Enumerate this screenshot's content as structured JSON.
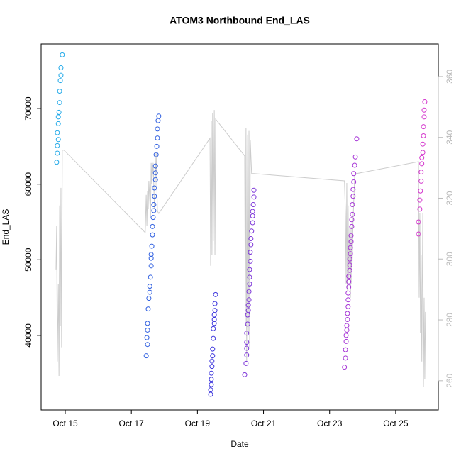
{
  "chart_data": {
    "type": "scatter",
    "title": "ATOM3 Northbound End_LAS",
    "xlabel": "Date",
    "ylabel": "End_LAS",
    "xlim": [
      14.27,
      26.29
    ],
    "xticks": [
      {
        "value": 15,
        "label": "Oct 15"
      },
      {
        "value": 17,
        "label": "Oct 17"
      },
      {
        "value": 19,
        "label": "Oct 19"
      },
      {
        "value": 21,
        "label": "Oct 21"
      },
      {
        "value": 23,
        "label": "Oct 23"
      },
      {
        "value": 25,
        "label": "Oct 25"
      }
    ],
    "ylim": [
      30141,
      78545
    ],
    "yticks": [
      40000,
      50000,
      60000,
      70000
    ],
    "y2lim": [
      250.4,
      370.7
    ],
    "y2ticks": [
      260,
      280,
      300,
      320,
      340,
      360
    ],
    "series": [
      {
        "type": "line",
        "axis": "y2",
        "color": "#cccccc",
        "x": [
          14.72,
          14.74,
          14.76,
          14.79,
          14.81,
          14.83,
          14.85,
          14.87,
          14.89,
          14.91,
          14.96,
          17.42,
          17.45,
          17.47,
          17.49,
          17.51,
          17.53,
          17.58,
          17.6,
          17.62,
          17.64,
          17.66,
          17.7,
          17.75,
          17.79,
          17.83,
          19.38,
          19.4,
          19.42,
          19.44,
          19.46,
          19.48,
          19.51,
          19.53,
          19.55,
          20.43,
          20.45,
          20.47,
          20.49,
          20.52,
          20.54,
          20.56,
          20.58,
          20.6,
          20.64,
          20.71,
          23.45,
          23.48,
          23.5,
          23.52,
          23.54,
          23.56,
          23.58,
          23.61,
          23.63,
          23.65,
          23.67,
          23.71,
          23.76,
          23.82,
          25.69,
          25.71,
          25.73,
          25.75,
          25.77,
          25.79,
          25.82,
          25.84,
          25.86,
          25.88,
          25.9,
          25.9
        ],
        "values": [
          296.6,
          311.0,
          266.3,
          291.9,
          261.6,
          317.6,
          277.9,
          323.4,
          271.0,
          335.8,
          335.8,
          308.7,
          321.1,
          311.0,
          322.2,
          316.4,
          325.7,
          314.1,
          331.6,
          324.6,
          328.1,
          331.6,
          316.4,
          335.1,
          315.7,
          315.0,
          339.7,
          297.8,
          345.5,
          301.3,
          347.9,
          305.9,
          349.0,
          301.3,
          346.0,
          333.9,
          277.9,
          343.2,
          266.3,
          340.9,
          275.6,
          342.1,
          271.0,
          339.0,
          328.1,
          328.1,
          325.7,
          314.1,
          291.9,
          325.0,
          289.6,
          317.6,
          293.1,
          310.6,
          287.3,
          310.6,
          291.9,
          312.9,
          327.4,
          328.1,
          332.0,
          287.3,
          315.2,
          275.6,
          301.3,
          266.3,
          315.2,
          258.1,
          287.3,
          260.5,
          282.6,
          273.3
        ]
      },
      {
        "color": "#1fa8e8",
        "x": [
          14.74,
          14.76,
          14.76,
          14.79,
          14.76,
          14.79,
          14.79,
          14.81,
          14.83,
          14.83,
          14.85,
          14.87,
          14.87,
          14.91
        ],
        "values": [
          62900,
          64100,
          65100,
          65900,
          66800,
          68000,
          68900,
          69500,
          70800,
          72300,
          73700,
          74400,
          75400,
          77100
        ]
      },
      {
        "color": "#2f5fe0",
        "x": [
          17.45,
          17.49,
          17.47,
          17.49,
          17.49,
          17.51,
          17.53,
          17.56,
          17.56,
          17.58,
          17.6,
          17.6,
          17.6,
          17.62,
          17.64,
          17.64,
          17.66,
          17.68,
          17.68,
          17.7,
          17.7,
          17.73,
          17.73,
          17.73,
          17.75,
          17.77,
          17.79,
          17.79,
          17.81,
          17.83
        ],
        "values": [
          37300,
          38800,
          39700,
          40700,
          41600,
          43500,
          44900,
          45700,
          46500,
          47700,
          49200,
          50200,
          50700,
          51800,
          53300,
          54400,
          55600,
          56500,
          57300,
          58400,
          59500,
          60600,
          61500,
          62400,
          63900,
          65000,
          66100,
          67300,
          68400,
          69000
        ]
      },
      {
        "color": "#3a33dc",
        "x": [
          19.4,
          19.4,
          19.42,
          19.42,
          19.42,
          19.44,
          19.44,
          19.46,
          19.46,
          19.48,
          19.48,
          19.51,
          19.51,
          19.51,
          19.53,
          19.53,
          19.55
        ],
        "values": [
          32200,
          32800,
          33500,
          34200,
          35000,
          35900,
          36600,
          37300,
          38200,
          39600,
          40900,
          41600,
          42100,
          42700,
          43300,
          44200,
          45400
        ]
      },
      {
        "color": "#7b33d8",
        "x": [
          20.43,
          20.47,
          20.49,
          20.49,
          20.49,
          20.49,
          20.52,
          20.52,
          20.54,
          20.54,
          20.56,
          20.56,
          20.58,
          20.58,
          20.58,
          20.6,
          20.6,
          20.62,
          20.62,
          20.64,
          20.67,
          20.67,
          20.67,
          20.69,
          20.71,
          20.71
        ],
        "values": [
          34800,
          36300,
          37400,
          38300,
          39100,
          40300,
          41500,
          42700,
          43300,
          44000,
          44700,
          45800,
          46800,
          47700,
          48700,
          49800,
          51000,
          52000,
          52800,
          53800,
          54900,
          55800,
          56400,
          57300,
          58300,
          59200
        ]
      },
      {
        "color": "#a533d6",
        "x": [
          23.45,
          23.48,
          23.48,
          23.5,
          23.5,
          23.52,
          23.52,
          23.54,
          23.54,
          23.56,
          23.56,
          23.56,
          23.58,
          23.58,
          23.58,
          23.61,
          23.61,
          23.61,
          23.63,
          23.63,
          23.65,
          23.65,
          23.67,
          23.67,
          23.69,
          23.69,
          23.71,
          23.71,
          23.73,
          23.73,
          23.76,
          23.78,
          23.82
        ],
        "values": [
          35800,
          37000,
          38100,
          39200,
          40000,
          40700,
          41300,
          42100,
          42900,
          43800,
          44700,
          45600,
          46400,
          47100,
          47800,
          48600,
          49300,
          50100,
          50800,
          51600,
          52400,
          53200,
          54400,
          55300,
          56000,
          57300,
          58400,
          59300,
          60300,
          61400,
          62500,
          63600,
          66000
        ]
      },
      {
        "color": "#d333cc",
        "x": [
          25.69,
          25.69,
          25.73,
          25.73,
          25.75,
          25.77,
          25.77,
          25.79,
          25.79,
          25.82,
          25.82,
          25.84,
          25.84,
          25.86,
          25.86,
          25.88
        ],
        "values": [
          53400,
          55000,
          56700,
          57900,
          59100,
          60400,
          61600,
          62700,
          63500,
          64200,
          65300,
          66400,
          67600,
          68900,
          69800,
          70900
        ]
      }
    ]
  }
}
